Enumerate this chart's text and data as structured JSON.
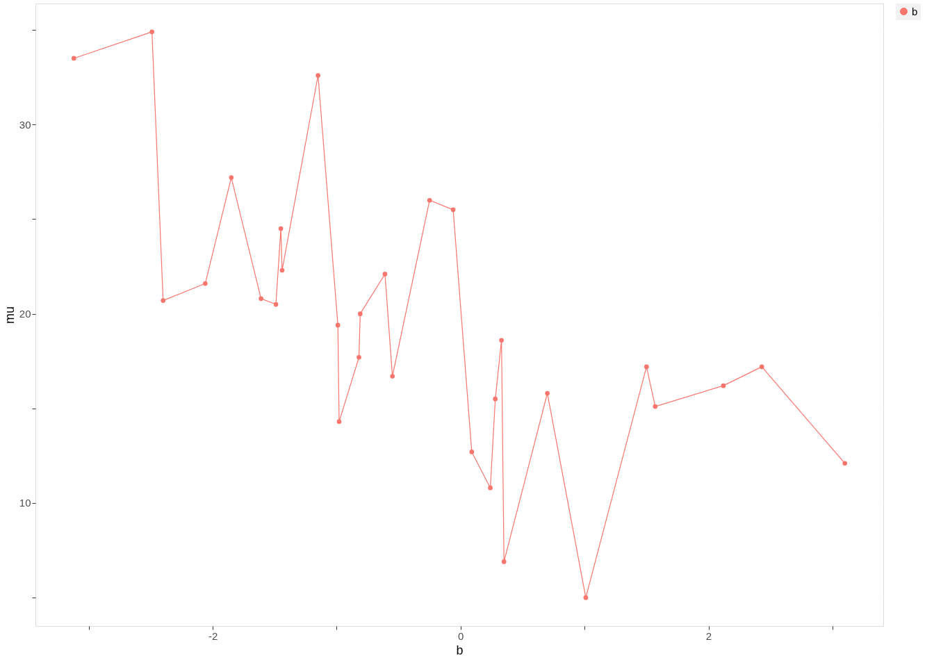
{
  "chart_data": {
    "type": "line",
    "xlabel": "b",
    "ylabel": "mu",
    "x": [
      -3.12,
      -2.49,
      -2.4,
      -2.06,
      -1.85,
      -1.61,
      -1.49,
      -1.45,
      -1.44,
      -1.15,
      -0.99,
      -0.98,
      -0.82,
      -0.81,
      -0.61,
      -0.55,
      -0.25,
      -0.06,
      0.09,
      0.24,
      0.28,
      0.33,
      0.35,
      0.7,
      1.01,
      1.5,
      1.57,
      2.12,
      2.43,
      3.1
    ],
    "series": [
      {
        "name": "b",
        "color": "#f8766d",
        "values": [
          33.5,
          34.9,
          20.7,
          21.6,
          27.2,
          20.8,
          20.5,
          24.5,
          22.3,
          32.6,
          19.4,
          14.3,
          17.7,
          20.0,
          22.1,
          16.7,
          26.0,
          25.5,
          12.7,
          10.8,
          15.5,
          18.6,
          6.9,
          15.8,
          5.0,
          17.2,
          15.1,
          16.2,
          17.2,
          12.1
        ]
      }
    ],
    "xlim": [
      -3.43,
      3.41
    ],
    "ylim": [
      3.5,
      36.4
    ],
    "xticks": [
      {
        "value": -3,
        "label": null
      },
      -2,
      {
        "value": -1,
        "label": null
      },
      0,
      {
        "value": 1,
        "label": null
      },
      2,
      {
        "value": 3,
        "label": null
      }
    ],
    "yticks": [
      {
        "value": 5,
        "label": null
      },
      10,
      {
        "value": 15,
        "label": null
      },
      20,
      {
        "value": 25,
        "label": null
      },
      30,
      {
        "value": 35,
        "label": null
      }
    ],
    "grid": true,
    "legend": "right",
    "marker": "circle",
    "line_style": "solid"
  }
}
